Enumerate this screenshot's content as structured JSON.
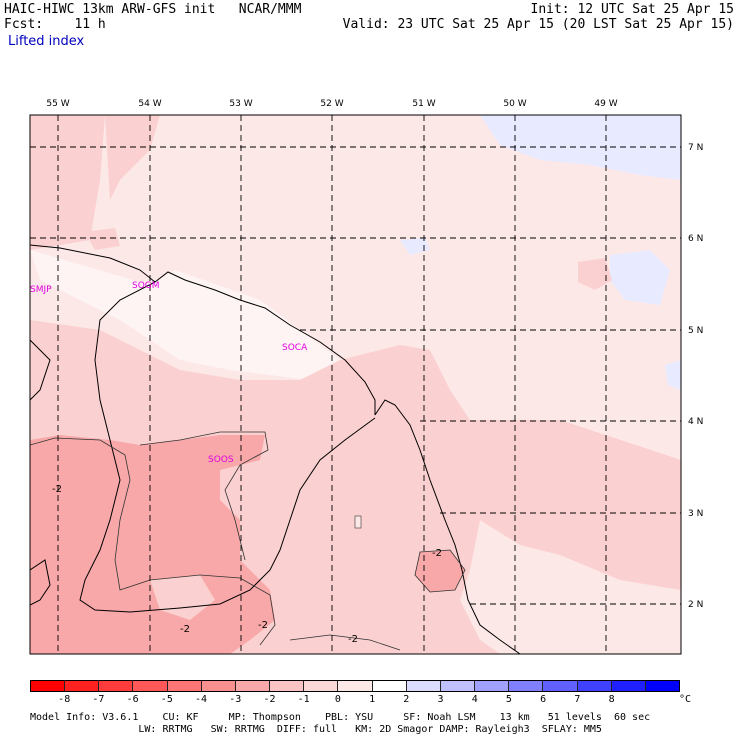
{
  "header": {
    "line1_left": "HAIC-HIWC 13km ARW-GFS init   NCAR/MMM",
    "line2_left": "Fcst:    11 h",
    "line1_right": "Init: 12 UTC Sat 25 Apr 15",
    "line2_right": "Valid: 23 UTC Sat 25 Apr 15 (20 LST Sat 25 Apr 15)",
    "field": "Lifted index"
  },
  "map": {
    "lon_labels": [
      "55 W",
      "54 W",
      "53 W",
      "52 W",
      "51 W",
      "50 W",
      "49 W"
    ],
    "lat_labels": [
      "7 N",
      "6 N",
      "5 N",
      "4 N",
      "3 N",
      "2 N"
    ],
    "stations": [
      "SMJP",
      "SOGM",
      "SOCA",
      "SOOS"
    ],
    "contour_labels": [
      "-2",
      "-2",
      "-2",
      "-2",
      "-2"
    ],
    "colors": {
      "very_light_pink": "#fde8e8",
      "light_pink": "#fbd0d0",
      "medium_pink": "#f8a8a8",
      "pale_blue": "#e8eaff",
      "near_white": "#fff4f4",
      "station": "#e000e0"
    }
  },
  "colorbar": {
    "colors": [
      "#ff0000",
      "#ff2020",
      "#ff3c3c",
      "#ff5858",
      "#ff7474",
      "#f89090",
      "#f8a8a8",
      "#fbc4c4",
      "#fbd8d8",
      "#fde8e8",
      "#ffffff",
      "#dcdcff",
      "#c0c0ff",
      "#a0a0ff",
      "#8080ff",
      "#6060ff",
      "#4040ff",
      "#2020ff",
      "#0000ff"
    ],
    "ticks": [
      "-8",
      "-7",
      "-6",
      "-5",
      "-4",
      "-3",
      "-2",
      "-1",
      "0",
      "1",
      "2",
      "3",
      "4",
      "5",
      "6",
      "7",
      "8"
    ],
    "unit": "°C"
  },
  "footer": {
    "line1": "Model Info: V3.6.1    CU: KF     MP: Thompson    PBL: YSU     SF: Noah LSM    13 km   51 levels  60 sec",
    "line2": "                  LW: RRTMG   SW: RRTMG  DIFF: full   KM: 2D Smagor DAMP: Rayleigh3  SFLAY: MM5"
  }
}
